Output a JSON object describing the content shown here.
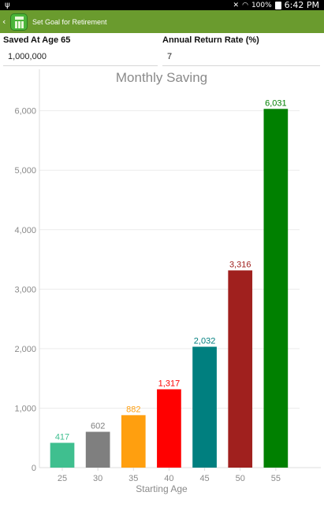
{
  "status_bar": {
    "battery_text": "100%",
    "time": "6:42 PM"
  },
  "app_bar": {
    "title": "Set Goal for Retirement",
    "back_icon": "chevron-left",
    "app_icon": "calculator-icon",
    "color": "#6a9b2e"
  },
  "form": {
    "saved_label": "Saved At Age 65",
    "saved_value": "1,000,000",
    "return_label": "Annual Return Rate (%)",
    "return_value": "7"
  },
  "chart_data": {
    "type": "bar",
    "title": "Monthly Saving",
    "xlabel": "Starting Age",
    "ylabel": "",
    "categories": [
      "25",
      "30",
      "35",
      "40",
      "45",
      "50",
      "55"
    ],
    "values": [
      417,
      602,
      882,
      1317,
      2032,
      3316,
      6031
    ],
    "value_labels": [
      "417",
      "602",
      "882",
      "1,317",
      "2,032",
      "3,316",
      "6,031"
    ],
    "colors": [
      "#3fbf8f",
      "#7f7f7f",
      "#ff9f0f",
      "#ff0000",
      "#007f7f",
      "#a0201e",
      "#008000"
    ],
    "ylim": [
      0,
      6300
    ],
    "yticks": [
      0,
      1000,
      2000,
      3000,
      4000,
      5000,
      6000
    ],
    "ytick_labels": [
      "0",
      "1,000",
      "2,000",
      "3,000",
      "4,000",
      "5,000",
      "6,000"
    ],
    "grid": true
  }
}
